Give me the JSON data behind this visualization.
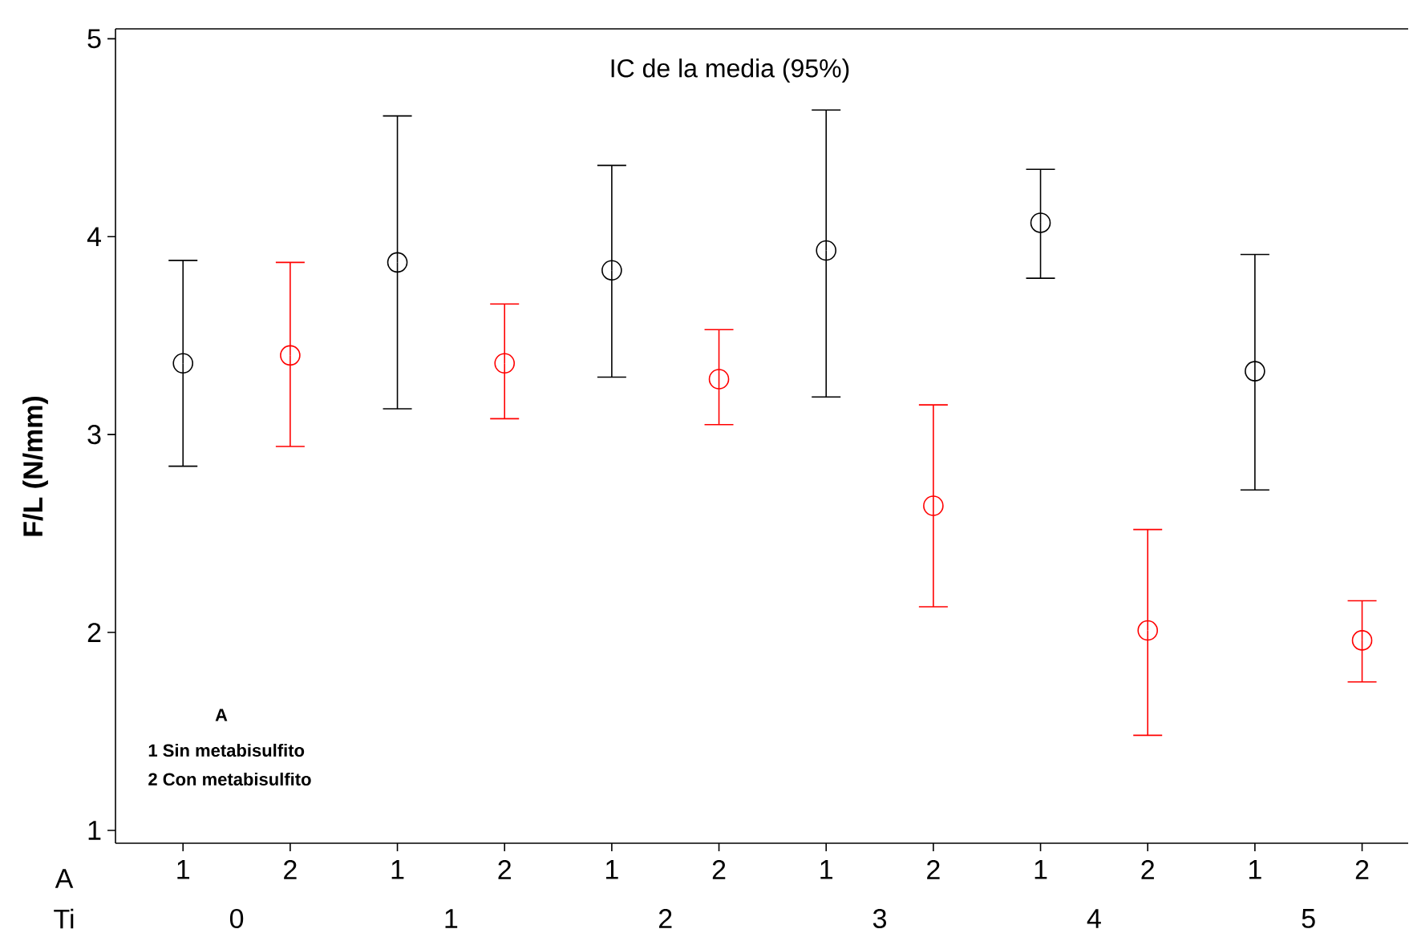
{
  "chart_data": {
    "type": "scatter",
    "title": "IC de la media (95%)",
    "ylabel": "F/L (N/mm)",
    "xlabel": "A",
    "categories": [
      "1",
      "2",
      "1",
      "2",
      "1",
      "2",
      "1",
      "2",
      "1",
      "2",
      "1",
      "2"
    ],
    "series": [
      {
        "color": "#000000",
        "values": [
          3.36,
          null,
          3.87,
          null,
          3.83,
          null,
          3.93,
          null,
          4.07,
          null,
          3.32,
          null
        ],
        "errors": [
          [
            2.84,
            3.88
          ],
          null,
          [
            3.13,
            4.61
          ],
          null,
          [
            3.29,
            4.36
          ],
          null,
          [
            3.19,
            4.64
          ],
          null,
          [
            3.79,
            4.34
          ],
          null,
          [
            2.72,
            3.91
          ],
          null
        ]
      },
      {
        "color": "#ff0000",
        "values": [
          null,
          3.4,
          null,
          3.36,
          null,
          3.28,
          null,
          2.64,
          null,
          2.01,
          null,
          1.96
        ],
        "errors": [
          null,
          [
            2.94,
            3.87
          ],
          null,
          [
            3.08,
            3.66
          ],
          null,
          [
            3.05,
            3.53
          ],
          null,
          [
            2.13,
            3.15
          ],
          null,
          [
            1.48,
            2.52
          ],
          null,
          [
            1.75,
            2.16
          ]
        ]
      }
    ],
    "ylim": [
      0.935,
      5.05
    ],
    "yticks": [
      1,
      2,
      3,
      4,
      5
    ],
    "marker": "circle",
    "annotations": [
      "Ti",
      "0",
      "1",
      "2",
      "3",
      "4",
      "5",
      "A",
      "1 Sin metabisulfito",
      "2 Con metabisulfito"
    ]
  }
}
